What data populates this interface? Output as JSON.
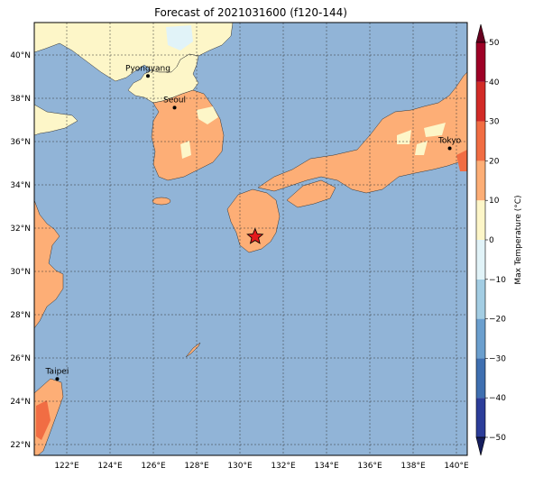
{
  "title": "Forecast of 2021031600 (f120-144)",
  "map": {
    "lon_range": [
      120.5,
      140.5
    ],
    "lat_range": [
      21.5,
      41.5
    ],
    "lon_ticks": [
      122,
      124,
      126,
      128,
      130,
      132,
      134,
      136,
      138,
      140
    ],
    "lat_ticks": [
      22,
      24,
      26,
      28,
      30,
      32,
      34,
      36,
      38,
      40
    ],
    "lon_tick_labels": [
      "122°E",
      "124°E",
      "126°E",
      "128°E",
      "130°E",
      "132°E",
      "134°E",
      "136°E",
      "138°E",
      "140°E"
    ],
    "lat_tick_labels": [
      "22°N",
      "24°N",
      "26°N",
      "28°N",
      "30°N",
      "32°N",
      "34°N",
      "36°N",
      "38°N",
      "40°N"
    ],
    "ocean_color": "#91b4d7",
    "cities": [
      {
        "name": "Pyongyang",
        "lon": 125.75,
        "lat": 39.03
      },
      {
        "name": "Seoul",
        "lon": 126.98,
        "lat": 37.57
      },
      {
        "name": "Tokyo",
        "lon": 139.69,
        "lat": 35.69
      },
      {
        "name": "Taipei",
        "lon": 121.56,
        "lat": 25.03
      }
    ],
    "marker": {
      "symbol": "star-icon",
      "lon": 130.7,
      "lat": 31.6,
      "color": "#e41a1c"
    }
  },
  "colorbar": {
    "label": "Max Temperature (°C)",
    "ticks": [
      50,
      40,
      30,
      20,
      10,
      0,
      -10,
      -20,
      -30,
      -40,
      -50
    ],
    "tick_labels": [
      "50",
      "40",
      "30",
      "20",
      "10",
      "0",
      "−10",
      "−20",
      "−30",
      "−40",
      "−50"
    ],
    "levels": [
      -50,
      -40,
      -30,
      -20,
      -10,
      0,
      10,
      20,
      30,
      40,
      50
    ],
    "colors": [
      "#2c3d99",
      "#3f6fb0",
      "#6b9fce",
      "#a3cde3",
      "#e1f3f8",
      "#fdf6c8",
      "#fdae76",
      "#f16d43",
      "#d22b27",
      "#9e0126"
    ],
    "under_color": "#151d5e",
    "over_color": "#67001f"
  }
}
